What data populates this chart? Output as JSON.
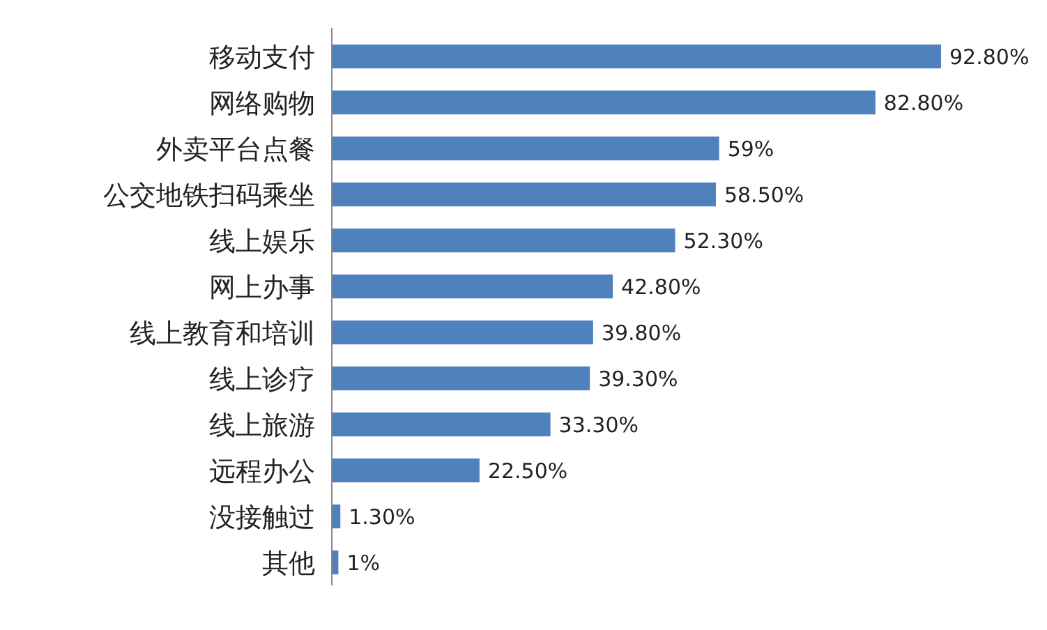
{
  "chart_data": {
    "type": "bar",
    "orientation": "horizontal",
    "categories": [
      "移动支付",
      "网络购物",
      "外卖平台点餐",
      "公交地铁扫码乘坐",
      "线上娱乐",
      "网上办事",
      "线上教育和培训",
      "线上诊疗",
      "线上旅游",
      "远程办公",
      "没接触过",
      "其他"
    ],
    "values": [
      92.8,
      82.8,
      59,
      58.5,
      52.3,
      42.8,
      39.8,
      39.3,
      33.3,
      22.5,
      1.3,
      1
    ],
    "value_labels": [
      "92.80%",
      "82.80%",
      "59%",
      "58.50%",
      "52.30%",
      "42.80%",
      "39.80%",
      "39.30%",
      "33.30%",
      "22.50%",
      "1.30%",
      "1%"
    ],
    "color": "#4f81bd"
  }
}
